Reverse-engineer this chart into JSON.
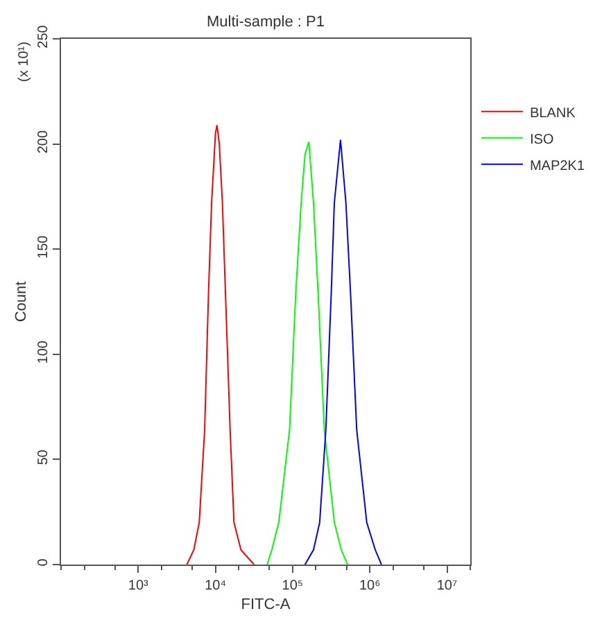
{
  "chart_data": {
    "type": "line",
    "title": "Multi-sample : P1",
    "xlabel": "FITC-A",
    "ylabel": "Count",
    "annotations": [
      "(x 10¹)"
    ],
    "log": "x",
    "legend": "top right",
    "marker": "none",
    "line_style": "solid",
    "xlim": [
      100,
      20000000
    ],
    "xticks": [
      {
        "value": 1000,
        "label": "10³"
      },
      {
        "value": 10000,
        "label": "10⁴"
      },
      {
        "value": 100000,
        "label": "10⁵"
      },
      {
        "value": 1000000,
        "label": "10⁶"
      },
      {
        "value": 10000000,
        "label": "10⁷"
      }
    ],
    "ylim": [
      0,
      250
    ],
    "yticks": [
      0,
      50,
      100,
      150,
      200,
      250
    ],
    "series": [
      {
        "name": "BLANK",
        "color": "#ff0000",
        "x": [
          4266,
          5248,
          6166,
          7244,
          8128,
          8913,
          10000,
          10471,
          11220,
          12303,
          13490,
          15488,
          17378,
          21380,
          31623
        ],
        "values": [
          0,
          7,
          20,
          64,
          129,
          172,
          205,
          209,
          200,
          172,
          129,
          64,
          20,
          7,
          0
        ]
      },
      {
        "name": "ISO",
        "color": "#00ff00",
        "x": [
          46774,
          53703,
          66069,
          91201,
          109648,
          128825,
          144544,
          162181,
          186209,
          213796,
          257040,
          346737,
          426580,
          512861
        ],
        "values": [
          0,
          7,
          20,
          64,
          129,
          172,
          195,
          201,
          172,
          129,
          64,
          20,
          7,
          0
        ]
      },
      {
        "name": "MAP2K1",
        "color": "#0000ff",
        "x": [
          144544,
          186209,
          223872,
          269153,
          316228,
          346737,
          416869,
          489779,
          562341,
          676083,
          912011,
          1174898,
          1412538
        ],
        "values": [
          0,
          7,
          20,
          64,
          129,
          172,
          202,
          172,
          129,
          64,
          20,
          7,
          0
        ]
      }
    ]
  }
}
